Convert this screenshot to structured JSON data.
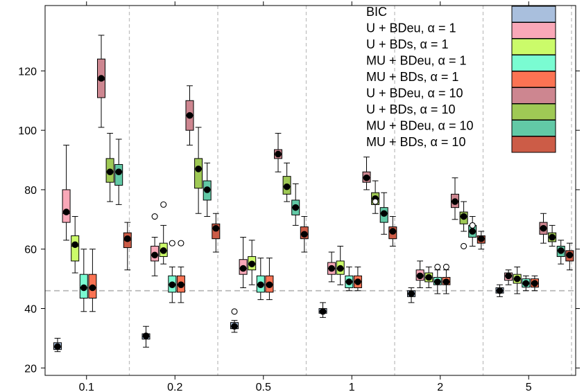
{
  "chart_data": {
    "type": "boxplot",
    "title": "",
    "xlabel": "",
    "ylabel": "",
    "ylim": [
      17.5,
      142
    ],
    "yticks": [
      20,
      40,
      60,
      80,
      100,
      120
    ],
    "groups": [
      "0.1",
      "0.2",
      "0.5",
      "1",
      "2",
      "5"
    ],
    "reference_line_y": 46,
    "legend_position": "top-right",
    "series": [
      {
        "name": "BIC",
        "color": "#a9bfdd"
      },
      {
        "name": "U + BDeu, α = 1",
        "color": "#f9a8b8"
      },
      {
        "name": "U + BDs, α = 1",
        "color": "#cbfb6a"
      },
      {
        "name": "MU + BDeu, α = 1",
        "color": "#7afcd2"
      },
      {
        "name": "MU + BDs, α = 1",
        "color": "#fb7353"
      },
      {
        "name": "U + BDeu, α = 10",
        "color": "#cd8690"
      },
      {
        "name": "U + BDs, α = 10",
        "color": "#9fc955"
      },
      {
        "name": "MU + BDeu, α = 10",
        "color": "#62c9a6"
      },
      {
        "name": "MU + BDs, α = 10",
        "color": "#cc5c47"
      }
    ],
    "boxes": [
      [
        {
          "min": 25.5,
          "q1": 26.2,
          "median": 27,
          "q3": 28.5,
          "max": 30,
          "mean": 27.2,
          "outliers": []
        },
        {
          "min": 63,
          "q1": 69,
          "median": 72,
          "q3": 80,
          "max": 95,
          "mean": 72.5,
          "outliers": []
        },
        {
          "min": 52,
          "q1": 56,
          "median": 61,
          "q3": 64.5,
          "max": 71,
          "mean": 61.5,
          "outliers": []
        },
        {
          "min": 39,
          "q1": 43.5,
          "median": 47,
          "q3": 51.5,
          "max": 60,
          "mean": 47,
          "outliers": []
        },
        {
          "min": 39,
          "q1": 43.5,
          "median": 47,
          "q3": 51.5,
          "max": 60,
          "mean": 47,
          "outliers": []
        },
        {
          "min": 101,
          "q1": 111,
          "median": 117,
          "q3": 124,
          "max": 132,
          "mean": 117.5,
          "outliers": []
        },
        {
          "min": 76,
          "q1": 82.5,
          "median": 86,
          "q3": 90.5,
          "max": 99,
          "mean": 86,
          "outliers": []
        },
        {
          "min": 75,
          "q1": 81.5,
          "median": 86,
          "q3": 88.5,
          "max": 97,
          "mean": 86,
          "outliers": []
        },
        {
          "min": 53,
          "q1": 60.5,
          "median": 63,
          "q3": 65.5,
          "max": 69,
          "mean": 63.5,
          "outliers": []
        }
      ],
      [
        {
          "min": 27,
          "q1": 29.7,
          "median": 30.5,
          "q3": 31.5,
          "max": 34,
          "mean": 30.8,
          "outliers": []
        },
        {
          "min": 51,
          "q1": 56,
          "median": 58,
          "q3": 61,
          "max": 64,
          "mean": 58,
          "outliers": [
            71
          ]
        },
        {
          "min": 55,
          "q1": 57.5,
          "median": 59.5,
          "q3": 62,
          "max": 68,
          "mean": 59.5,
          "outliers": [
            75
          ]
        },
        {
          "min": 42,
          "q1": 45.5,
          "median": 48,
          "q3": 51,
          "max": 54,
          "mean": 48,
          "outliers": [
            62
          ]
        },
        {
          "min": 42,
          "q1": 45.5,
          "median": 48,
          "q3": 51,
          "max": 54,
          "mean": 48,
          "outliers": [
            62
          ]
        },
        {
          "min": 95,
          "q1": 100,
          "median": 105,
          "q3": 110,
          "max": 115,
          "mean": 105,
          "outliers": []
        },
        {
          "min": 72,
          "q1": 80.5,
          "median": 87,
          "q3": 90.5,
          "max": 101,
          "mean": 87,
          "outliers": []
        },
        {
          "min": 71,
          "q1": 76.5,
          "median": 80,
          "q3": 83,
          "max": 89,
          "mean": 80,
          "outliers": []
        },
        {
          "min": 59,
          "q1": 63.5,
          "median": 67,
          "q3": 68.5,
          "max": 72,
          "mean": 67,
          "outliers": []
        }
      ],
      [
        {
          "min": 32,
          "q1": 33.2,
          "median": 34,
          "q3": 35.3,
          "max": 36,
          "mean": 34,
          "outliers": [
            39
          ]
        },
        {
          "min": 47,
          "q1": 51.5,
          "median": 53.5,
          "q3": 56.5,
          "max": 64,
          "mean": 53.5,
          "outliers": []
        },
        {
          "min": 48,
          "q1": 53,
          "median": 55,
          "q3": 57.5,
          "max": 63,
          "mean": 55,
          "outliers": []
        },
        {
          "min": 43,
          "q1": 45.5,
          "median": 48,
          "q3": 51,
          "max": 57,
          "mean": 48,
          "outliers": []
        },
        {
          "min": 43,
          "q1": 45.5,
          "median": 48,
          "q3": 51,
          "max": 57,
          "mean": 48,
          "outliers": []
        },
        {
          "min": 86,
          "q1": 90.5,
          "median": 92,
          "q3": 93.5,
          "max": 99,
          "mean": 92,
          "outliers": []
        },
        {
          "min": 76,
          "q1": 78.5,
          "median": 81,
          "q3": 84.5,
          "max": 89,
          "mean": 81,
          "outliers": []
        },
        {
          "min": 68,
          "q1": 71.5,
          "median": 74,
          "q3": 76.5,
          "max": 82,
          "mean": 74,
          "outliers": []
        },
        {
          "min": 59,
          "q1": 63.5,
          "median": 65,
          "q3": 67.5,
          "max": 71,
          "mean": 65,
          "outliers": []
        }
      ],
      [
        {
          "min": 37,
          "q1": 38.4,
          "median": 39,
          "q3": 40,
          "max": 42,
          "mean": 39,
          "outliers": []
        },
        {
          "min": 49,
          "q1": 51.5,
          "median": 53.5,
          "q3": 55.5,
          "max": 59,
          "mean": 53.5,
          "outliers": []
        },
        {
          "min": 48,
          "q1": 51.5,
          "median": 53.5,
          "q3": 56,
          "max": 61,
          "mean": 53.5,
          "outliers": []
        },
        {
          "min": 46,
          "q1": 47,
          "median": 49,
          "q3": 51,
          "max": 54,
          "mean": 49,
          "outliers": []
        },
        {
          "min": 46,
          "q1": 47,
          "median": 49,
          "q3": 51,
          "max": 54,
          "mean": 49,
          "outliers": []
        },
        {
          "min": 80,
          "q1": 82.5,
          "median": 84,
          "q3": 86,
          "max": 91,
          "mean": 84,
          "outliers": []
        },
        {
          "min": 72,
          "q1": 75,
          "median": 77,
          "q3": 79,
          "max": 83,
          "mean": 77,
          "outliers": [
            76
          ]
        },
        {
          "min": 65,
          "q1": 69,
          "median": 72,
          "q3": 74,
          "max": 79,
          "mean": 72,
          "outliers": []
        },
        {
          "min": 61,
          "q1": 63.5,
          "median": 66,
          "q3": 67.5,
          "max": 71,
          "mean": 66,
          "outliers": []
        }
      ],
      [
        {
          "min": 42,
          "q1": 44,
          "median": 45,
          "q3": 46,
          "max": 47,
          "mean": 45,
          "outliers": []
        },
        {
          "min": 47,
          "q1": 49.5,
          "median": 51,
          "q3": 53,
          "max": 56,
          "mean": 51,
          "outliers": []
        },
        {
          "min": 47,
          "q1": 49,
          "median": 50.5,
          "q3": 52,
          "max": 54,
          "mean": 50.5,
          "outliers": []
        },
        {
          "min": 45,
          "q1": 48,
          "median": 49,
          "q3": 50.5,
          "max": 53,
          "mean": 49,
          "outliers": [
            54
          ]
        },
        {
          "min": 45,
          "q1": 48,
          "median": 49,
          "q3": 50.5,
          "max": 53,
          "mean": 49,
          "outliers": [
            54
          ]
        },
        {
          "min": 70,
          "q1": 74,
          "median": 76,
          "q3": 78.5,
          "max": 84,
          "mean": 76,
          "outliers": []
        },
        {
          "min": 66,
          "q1": 68.5,
          "median": 71,
          "q3": 72.5,
          "max": 76,
          "mean": 71,
          "outliers": [
            61
          ]
        },
        {
          "min": 61,
          "q1": 64,
          "median": 66,
          "q3": 68,
          "max": 71,
          "mean": 66,
          "outliers": [
            68
          ]
        },
        {
          "min": 60,
          "q1": 62,
          "median": 63.5,
          "q3": 64.5,
          "max": 66,
          "mean": 63.5,
          "outliers": []
        }
      ],
      [
        {
          "min": 44,
          "q1": 45.2,
          "median": 46,
          "q3": 47,
          "max": 48,
          "mean": 46,
          "outliers": []
        },
        {
          "min": 48,
          "q1": 49.5,
          "median": 51,
          "q3": 52,
          "max": 53,
          "mean": 51,
          "outliers": []
        },
        {
          "min": 45,
          "q1": 48.5,
          "median": 50,
          "q3": 51.5,
          "max": 54,
          "mean": 50,
          "outliers": []
        },
        {
          "min": 46,
          "q1": 47.2,
          "median": 48.5,
          "q3": 50,
          "max": 51,
          "mean": 48.5,
          "outliers": []
        },
        {
          "min": 46,
          "q1": 47.2,
          "median": 48.5,
          "q3": 50,
          "max": 51,
          "mean": 48.5,
          "outliers": []
        },
        {
          "min": 62,
          "q1": 65,
          "median": 67,
          "q3": 69,
          "max": 72,
          "mean": 67,
          "outliers": []
        },
        {
          "min": 61,
          "q1": 62.5,
          "median": 64,
          "q3": 65.5,
          "max": 68,
          "mean": 64,
          "outliers": []
        },
        {
          "min": 55,
          "q1": 57.5,
          "median": 59.5,
          "q3": 61,
          "max": 63,
          "mean": 59.5,
          "outliers": []
        },
        {
          "min": 53,
          "q1": 56,
          "median": 58,
          "q3": 59.5,
          "max": 62,
          "mean": 58,
          "outliers": []
        }
      ]
    ]
  }
}
